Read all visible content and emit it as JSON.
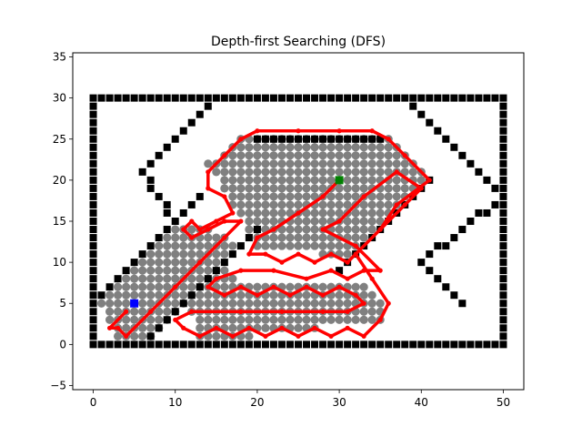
{
  "chart_data": {
    "type": "scatter",
    "title": "Depth-first Searching (DFS)",
    "xlabel": "",
    "ylabel": "",
    "xlim": [
      -2.5,
      52.5
    ],
    "ylim": [
      -5.5,
      35.5
    ],
    "xticks": [
      0,
      10,
      20,
      30,
      40,
      50
    ],
    "yticks": [
      -5,
      0,
      5,
      10,
      15,
      20,
      25,
      30,
      35
    ],
    "grid": false,
    "legend": "none",
    "colors": {
      "obstacle": "#000000",
      "visited": "#808080",
      "path": "#ff0000",
      "start": "#0000ff",
      "goal": "#008000"
    },
    "start": [
      5,
      5
    ],
    "goal": [
      30,
      20
    ],
    "obstacle_segments": [
      [
        [
          0,
          0
        ],
        [
          50,
          0
        ]
      ],
      [
        [
          0,
          30
        ],
        [
          50,
          30
        ]
      ],
      [
        [
          0,
          0
        ],
        [
          0,
          30
        ]
      ],
      [
        [
          50,
          0
        ],
        [
          50,
          30
        ]
      ],
      [
        [
          20,
          25
        ],
        [
          35,
          25
        ]
      ],
      [
        [
          14,
          29
        ],
        [
          6,
          21
        ]
      ],
      [
        [
          6,
          21
        ],
        [
          10,
          15
        ]
      ],
      [
        [
          0,
          5
        ],
        [
          13,
          18
        ]
      ],
      [
        [
          13,
          18
        ],
        [
          10,
          15
        ]
      ],
      [
        [
          6,
          0
        ],
        [
          10,
          4
        ]
      ],
      [
        [
          10,
          4
        ],
        [
          15,
          9
        ]
      ],
      [
        [
          15,
          9
        ],
        [
          20,
          14
        ]
      ],
      [
        [
          30,
          9
        ],
        [
          41,
          20
        ]
      ],
      [
        [
          39,
          29
        ],
        [
          46,
          22
        ]
      ],
      [
        [
          46,
          22
        ],
        [
          50,
          18
        ]
      ],
      [
        [
          50,
          18
        ],
        [
          40,
          10
        ]
      ],
      [
        [
          40,
          10
        ],
        [
          45,
          5
        ]
      ]
    ],
    "visited_regions": [
      [
        [
          14,
          22
        ],
        [
          19,
          26
        ],
        [
          36,
          26
        ],
        [
          41,
          21
        ],
        [
          40,
          19
        ],
        [
          30,
          10
        ],
        [
          26,
          12
        ],
        [
          20,
          12
        ]
      ],
      [
        [
          1,
          5
        ],
        [
          11,
          15
        ],
        [
          15,
          14
        ],
        [
          18,
          12
        ],
        [
          12,
          6
        ],
        [
          8,
          1
        ],
        [
          3,
          1
        ]
      ],
      [
        [
          11,
          6
        ],
        [
          15,
          11
        ],
        [
          18,
          8
        ],
        [
          33,
          8
        ],
        [
          35,
          6
        ],
        [
          36,
          3
        ],
        [
          20,
          1
        ],
        [
          13,
          1
        ]
      ]
    ],
    "path": [
      [
        30,
        20
      ],
      [
        28,
        18
      ],
      [
        25,
        16
      ],
      [
        22,
        14
      ],
      [
        20,
        13
      ],
      [
        19,
        11
      ],
      [
        21,
        11
      ],
      [
        23,
        10
      ],
      [
        25,
        11
      ],
      [
        27,
        10
      ],
      [
        29,
        11
      ],
      [
        31,
        10
      ],
      [
        35,
        14
      ],
      [
        38,
        17
      ],
      [
        40,
        19
      ],
      [
        37,
        21
      ],
      [
        33,
        18
      ],
      [
        30,
        15
      ],
      [
        28,
        14
      ],
      [
        32,
        12
      ],
      [
        35,
        9
      ],
      [
        33,
        9
      ],
      [
        31,
        8
      ],
      [
        29,
        9
      ],
      [
        26,
        8
      ],
      [
        22,
        9
      ],
      [
        18,
        9
      ],
      [
        15,
        8
      ],
      [
        14,
        7
      ],
      [
        16,
        6
      ],
      [
        18,
        7
      ],
      [
        20,
        6
      ],
      [
        22,
        7
      ],
      [
        24,
        6
      ],
      [
        26,
        7
      ],
      [
        28,
        6
      ],
      [
        30,
        7
      ],
      [
        32,
        6
      ],
      [
        33,
        5
      ],
      [
        31,
        4
      ],
      [
        28,
        4
      ],
      [
        23,
        4
      ],
      [
        18,
        4
      ],
      [
        12,
        4
      ],
      [
        10,
        3
      ],
      [
        11,
        2
      ],
      [
        13,
        1
      ],
      [
        15,
        2
      ],
      [
        17,
        1
      ],
      [
        19,
        2
      ],
      [
        21,
        1
      ],
      [
        23,
        2
      ],
      [
        25,
        1
      ],
      [
        27,
        2
      ],
      [
        29,
        1
      ],
      [
        31,
        2
      ],
      [
        33,
        1
      ],
      [
        35,
        3
      ],
      [
        36,
        5
      ],
      [
        34,
        8
      ],
      [
        32,
        11
      ],
      [
        35,
        14
      ],
      [
        37,
        17
      ],
      [
        41,
        20
      ],
      [
        38,
        23
      ],
      [
        36,
        25
      ],
      [
        34,
        26
      ],
      [
        30,
        26
      ],
      [
        25,
        26
      ],
      [
        20,
        26
      ],
      [
        18,
        25
      ],
      [
        16,
        23
      ],
      [
        14,
        21
      ],
      [
        14,
        19
      ],
      [
        16,
        18
      ],
      [
        17,
        16
      ],
      [
        15,
        15
      ],
      [
        13,
        14
      ],
      [
        12,
        15
      ],
      [
        11,
        14
      ],
      [
        12,
        13
      ],
      [
        14,
        14
      ],
      [
        16,
        15
      ],
      [
        18,
        15
      ],
      [
        16,
        13
      ],
      [
        13,
        10
      ],
      [
        10,
        7
      ],
      [
        7,
        4
      ],
      [
        4,
        1
      ],
      [
        3,
        2
      ],
      [
        2,
        2
      ],
      [
        4,
        4
      ]
    ]
  }
}
